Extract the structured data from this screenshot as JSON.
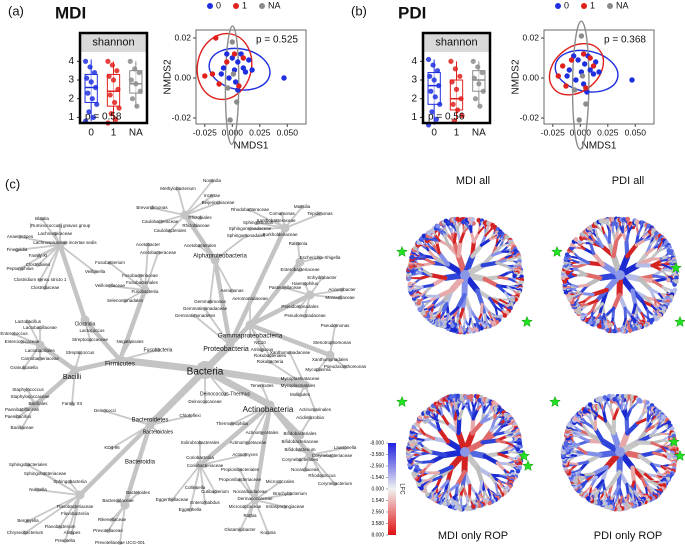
{
  "chart_data": [
    {
      "type": "box",
      "panel_label": "(a)",
      "title": "MDI",
      "strip": "shannon",
      "categories": [
        "0",
        "1",
        "NA"
      ],
      "colors": [
        "#1f2fe0",
        "#e0201c",
        "#8c8c8c"
      ],
      "boxes": [
        {
          "whisker_low": 0.8,
          "q1": 1.8,
          "median": 2.6,
          "q3": 3.3,
          "whisker_high": 4.1,
          "points": [
            4.0,
            3.7,
            3.4,
            3.1,
            2.9,
            2.6,
            2.3,
            2.0,
            1.7,
            1.3,
            1.0,
            0.8
          ]
        },
        {
          "whisker_low": 0.7,
          "q1": 1.6,
          "median": 2.4,
          "q3": 3.3,
          "whisker_high": 4.0,
          "points": [
            4.0,
            3.8,
            3.5,
            3.2,
            3.0,
            2.5,
            2.2,
            1.8,
            1.5,
            1.2,
            0.9,
            0.7
          ]
        },
        {
          "whisker_low": 1.5,
          "q1": 2.3,
          "median": 2.8,
          "q3": 3.5,
          "whisker_high": 4.0,
          "points": [
            4.0,
            3.6,
            3.4,
            3.0,
            2.8,
            2.4,
            2.0,
            1.6
          ]
        }
      ],
      "ylim": [
        0.7,
        4.5
      ],
      "yticks": [
        1,
        2,
        3,
        4
      ],
      "annotation": "p = 0.58"
    },
    {
      "type": "scatter",
      "xlabel": "NMDS1",
      "ylabel": "NMDS2",
      "annotation": "p = 0.525",
      "xlim": [
        -0.033,
        0.067
      ],
      "ylim": [
        -0.023,
        0.024
      ],
      "xticks": [
        {
          "value": -0.025,
          "label": "-0.025"
        },
        {
          "value": 0,
          "label": "0.000"
        },
        {
          "value": 0.025,
          "label": "0.025"
        },
        {
          "value": 0.05,
          "label": "0.050"
        }
      ],
      "yticks": [
        {
          "value": -0.02,
          "label": "-0.02"
        },
        {
          "value": 0,
          "label": "0.00"
        },
        {
          "value": 0.02,
          "label": "0.02"
        }
      ],
      "series": [
        {
          "name": "0",
          "color": "#1f2fe0",
          "x": [
            -0.005,
            0,
            0.005,
            0.01,
            -0.008,
            0.002,
            0.012,
            0.015,
            -0.003,
            0.003,
            0.008,
            0.047,
            0.005,
            -0.01,
            0.018
          ],
          "values": [
            0.012,
            0.01,
            0.008,
            0.005,
            0.005,
            0.004,
            0.003,
            0.009,
            0,
            -0.002,
            0.012,
            0,
            -0.006,
            0.002,
            0.004
          ]
        },
        {
          "name": "1",
          "color": "#e0201c",
          "x": [
            -0.015,
            -0.025,
            -0.018,
            -0.005,
            0.01,
            0.002,
            -0.012,
            0.006
          ],
          "values": [
            0.02,
            0.001,
            0.002,
            0.008,
            0.01,
            0.012,
            -0.003,
            -0.004
          ]
        },
        {
          "name": "NA",
          "color": "#8c8c8c",
          "x": [
            -0.002,
            0,
            0.001,
            -0.004,
            0.004
          ],
          "values": [
            -0.021,
            0.018,
            0.002,
            -0.005,
            -0.012
          ]
        }
      ]
    },
    {
      "type": "box",
      "panel_label": "(b)",
      "title": "PDI",
      "strip": "shannon",
      "categories": [
        "0",
        "1",
        "NA"
      ],
      "colors": [
        "#1f2fe0",
        "#e0201c",
        "#8c8c8c"
      ],
      "boxes": [
        {
          "whisker_low": 0.6,
          "q1": 1.7,
          "median": 2.7,
          "q3": 3.4,
          "whisker_high": 4.1,
          "points": [
            4.1,
            3.8,
            3.5,
            3.2,
            3.0,
            2.7,
            2.4,
            2.1,
            1.7,
            1.3,
            0.9,
            0.6
          ]
        },
        {
          "whisker_low": 0.8,
          "q1": 1.4,
          "median": 2.0,
          "q3": 3.0,
          "whisker_high": 4.0,
          "points": [
            4.0,
            3.6,
            3.2,
            2.9,
            2.5,
            2.0,
            1.7,
            1.4,
            1.1,
            0.8
          ]
        },
        {
          "whisker_low": 1.6,
          "q1": 2.4,
          "median": 3.0,
          "q3": 3.5,
          "whisker_high": 4.0,
          "points": [
            4.0,
            3.7,
            3.4,
            3.1,
            2.8,
            2.4,
            2.0,
            1.6
          ]
        }
      ],
      "ylim": [
        0.7,
        4.5
      ],
      "yticks": [
        1,
        2,
        3,
        4
      ],
      "annotation": "p = 0.56"
    },
    {
      "type": "scatter",
      "xlabel": "NMDS1",
      "ylabel": "NMDS2",
      "annotation": "p = 0.368",
      "xlim": [
        -0.033,
        0.067
      ],
      "ylim": [
        -0.023,
        0.024
      ],
      "xticks": [
        {
          "value": -0.025,
          "label": "-0.025"
        },
        {
          "value": 0,
          "label": "0.000"
        },
        {
          "value": 0.025,
          "label": "0.025"
        },
        {
          "value": 0.05,
          "label": "0.050"
        }
      ],
      "yticks": [
        {
          "value": -0.02,
          "label": "-0.02"
        },
        {
          "value": 0,
          "label": "0.00"
        },
        {
          "value": 0.02,
          "label": "0.02"
        }
      ],
      "series": [
        {
          "name": "0",
          "color": "#1f2fe0",
          "x": [
            -0.006,
            -0.002,
            0.004,
            0.009,
            -0.01,
            0.001,
            0.012,
            0.014,
            -0.004,
            0.003,
            0.007,
            0.047,
            0.006,
            -0.012,
            0.017
          ],
          "values": [
            0.011,
            0.009,
            0.007,
            0.004,
            0.004,
            0.003,
            0.002,
            0.008,
            -0.001,
            -0.003,
            0.011,
            -0.001,
            -0.007,
            0.001,
            0.003
          ]
        },
        {
          "name": "1",
          "color": "#e0201c",
          "x": [
            -0.016,
            -0.02,
            -0.008,
            0.009,
            0.003,
            -0.013,
            0.005,
            0.012
          ],
          "values": [
            0.006,
            0.001,
            0.009,
            0.01,
            0.012,
            -0.004,
            -0.005,
            0.006
          ]
        },
        {
          "name": "NA",
          "color": "#8c8c8c",
          "x": [
            -0.001,
            0.001,
            0.002,
            -0.005,
            0.005
          ],
          "values": [
            -0.021,
            0.021,
            0.001,
            -0.006,
            -0.013
          ]
        }
      ]
    },
    {
      "type": "heat_tree",
      "panel_label": "(c)",
      "labels": [
        "Nocardia",
        "Methylobacterium",
        "Incertae",
        "Beijerinckiaceae",
        "Brevundimonas",
        "Rhodobacteraceae",
        "Caulobacteraceae",
        "Rhizobiales",
        "Rhizobiaceae",
        "Caulobacterales",
        "Sphingomonas",
        "Sphingomonadales",
        "Sphingomonadaceae",
        "Acetobacter",
        "Acetobacteraceae",
        "Acetobacterales",
        "Alphaproteobacteria",
        "Blautia",
        "[Ruminococcus] gnavus group",
        "Lachnospiraceae",
        "Anaerostipes",
        "Lachnospiraceae incertae sedis",
        "Finegoldia",
        "Family XI",
        "Clostridiales",
        "Peptoniphilus",
        "Fusobacterium",
        "Veillonella",
        "Clostridium sensu stricto 1",
        "Clostridiaceae",
        "Veillonellaceae",
        "Fusobacteriaceae",
        "Fusobacteriales",
        "Fusobacteriia",
        "Selenomonadales",
        "Lactobacillus",
        "Clostridia",
        "Lactococcus",
        "Enterococcus",
        "Streptococcaceae",
        "Enterococcaceae",
        "Negativicutes",
        "Lactobacillaceae",
        "Lactobacillales",
        "Streptococcus",
        "Carnobacteriaceae",
        "Fusobacteria",
        "Firmicutes",
        "Granulicatella",
        "Bacilli",
        "Staphylococcus",
        "Staphylococcaceae",
        "Bacillales",
        "Family XII",
        "Paenibacillaceae",
        "Paenibacillus",
        "Deinococci",
        "Bacillaceae",
        "Gemmatimonadetes",
        "Gemmatimonadaceae",
        "Gemmatimonas",
        "Aeromonas",
        "Aeromonadaceae",
        "Proteobacteria",
        "Gammaproteobacteria",
        "Rokubacteriales",
        "Rokubacteria",
        "NC10",
        "Ambiguous",
        "Deinococcus-Thermus",
        "Deinococcaceae",
        "Bacteria",
        "Xanthomonadaceae",
        "Xanthomonadales",
        "Pseudoxanthomonas",
        "Stenotrophomonas",
        "Pseudomonas",
        "Pseudomonadaceae",
        "Pseudomonadales",
        "Moraxellaceae",
        "Acinetobacter",
        "Enhydrobacter",
        "Enterobacteriaceae",
        "Escherichia-Shigella",
        "Pasteurellaceae",
        "Haemophilus",
        "Burkholderiaceae",
        "Ralstonia",
        "Comamonas",
        "Massilia",
        "Tepidimonas",
        "Xanthobacteraceae",
        "Mycoplasma",
        "Mycoplasmataceae",
        "Mycoplasmatales",
        "Mollicutes",
        "Tenericutes",
        "Actinobacteria",
        "Bacteroidetes",
        "Bacteroidales",
        "KD4-96",
        "Chloroflexi",
        "Thermoleophilia",
        "Solirubrobacterales",
        "Actinomycetales",
        "Actinomycetaceae",
        "Actinomyces",
        "Acidimicrobiia",
        "Actinomarinales",
        "Bifidobacteriales",
        "Bifidobacteriaceae",
        "Bifidobacterium",
        "Coriobacteriia",
        "Coriobacteriaceae",
        "Propionibacteriales",
        "Corynebacteriales",
        "Corynebacteriaceae",
        "Lawsonella",
        "Nocardiaceae",
        "Rhodococcus",
        "Corynebacterium",
        "Micrococcales",
        "Propionibacteriaceae",
        "Bacteroidia",
        "Sphingobacteriales",
        "Sphingobacteriaceae",
        "Sphingobacteriia",
        "Nubsella",
        "Bacteroides",
        "Bacteroidaceae",
        "Flavobacteriaceae",
        "Flavobacteriia",
        "Bergeyella",
        "Flavobacterium",
        "Chryseobacterium",
        "Rikenellaceae",
        "Alistipes",
        "Prevotellaceae",
        "Prevotella",
        "Prevotellaceae UCG-001",
        "Eggerthellaceae",
        "Eggerthella",
        "Enterorhabdus",
        "Collinsella",
        "Cutibacterium",
        "Nocardioidaceae",
        "Dermacoccaceae",
        "Intrasporangiaceae",
        "Brachybacterium",
        "Micrococcaceae",
        "Rothia",
        "Glutamicibacter",
        "Kocuria"
      ],
      "subplots": [
        {
          "title": "MDI all"
        },
        {
          "title": "PDI all"
        },
        {
          "title": "MDI only ROP"
        },
        {
          "title": "PDI only ROP"
        }
      ],
      "colorbar": {
        "title": "LFC",
        "ticks": [
          {
            "value": -8,
            "label": "-8.000"
          },
          {
            "value": -3.58,
            "label": "-3.580"
          },
          {
            "value": -2.56,
            "label": "-2.560"
          },
          {
            "value": -1.54,
            "label": "-1.540"
          },
          {
            "value": 0,
            "label": "0.000"
          },
          {
            "value": 1.54,
            "label": "1.540"
          },
          {
            "value": 2.56,
            "label": "2.560"
          },
          {
            "value": 3.58,
            "label": "3.580"
          },
          {
            "value": 8,
            "label": "8.000"
          }
        ]
      }
    }
  ]
}
